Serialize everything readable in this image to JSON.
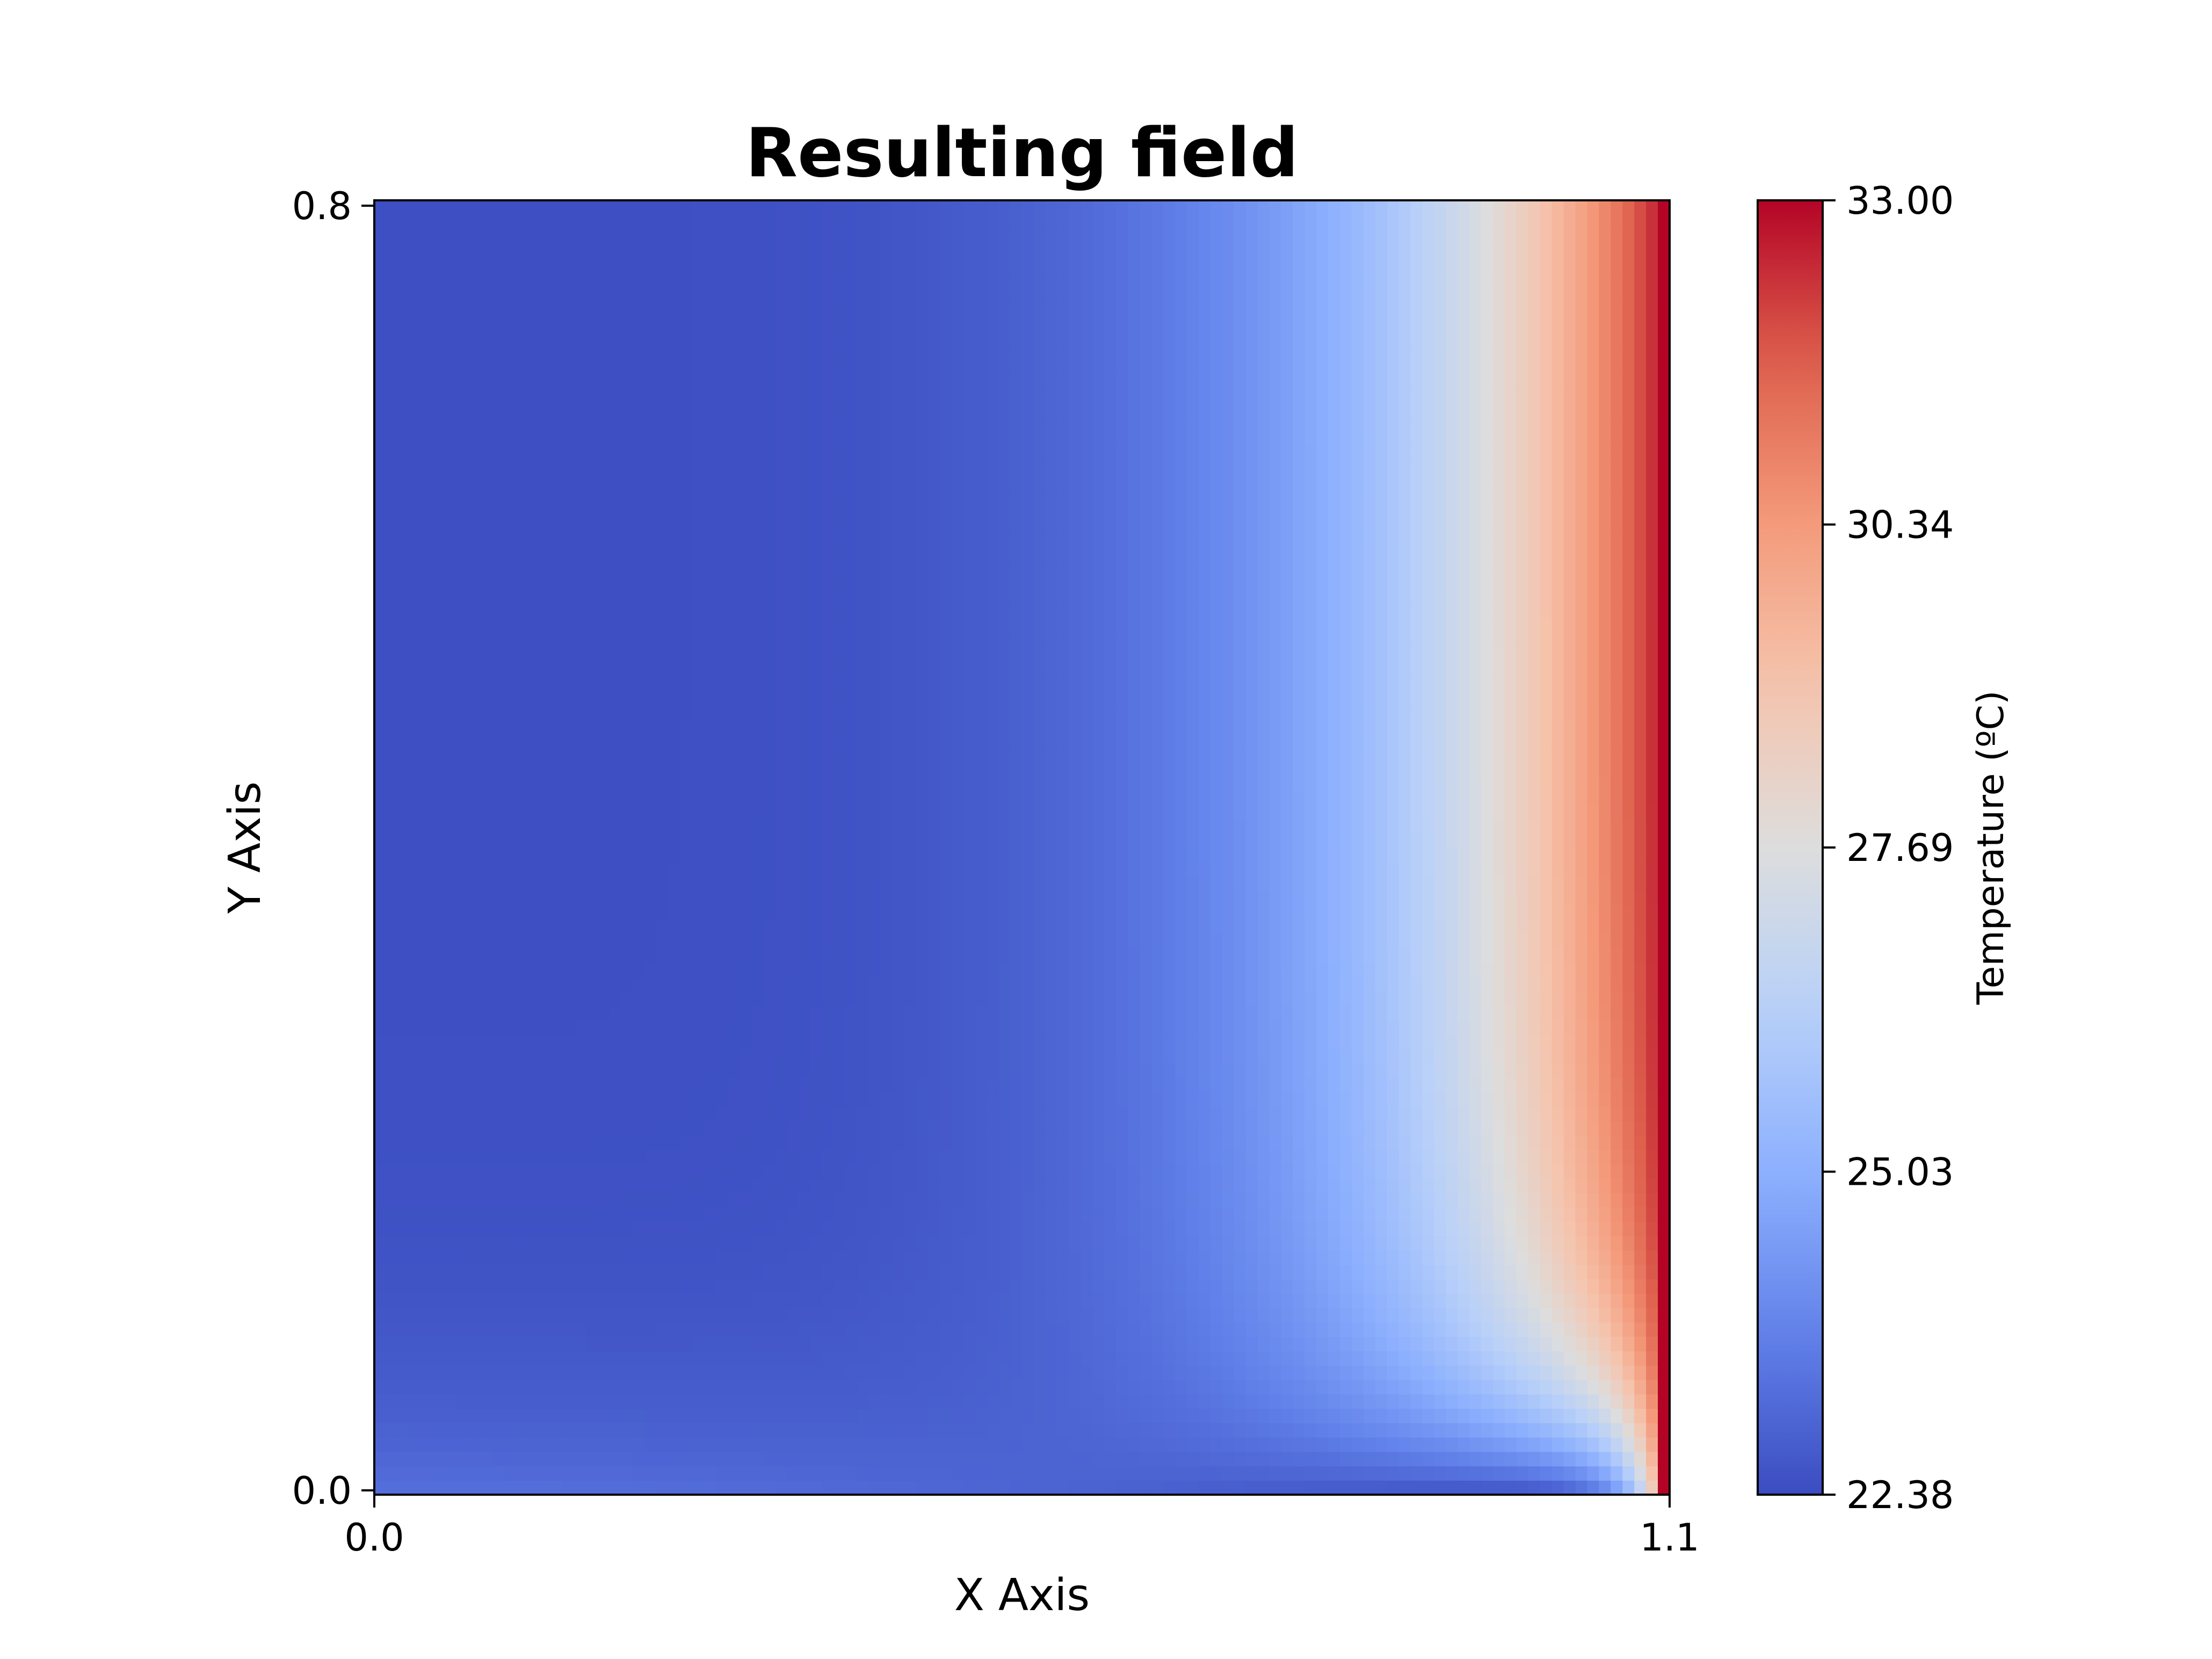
{
  "chart_data": {
    "type": "heatmap",
    "title": "Resulting field",
    "xlabel": "X Axis",
    "ylabel": "Y Axis",
    "xlim": [
      0.0,
      1.1
    ],
    "ylim": [
      0.0,
      0.8
    ],
    "x_ticks": [
      {
        "value": 0.0,
        "label": "0.0"
      },
      {
        "value": 1.1,
        "label": "1.1"
      }
    ],
    "y_ticks": [
      {
        "value": 0.0,
        "label": "0.0"
      },
      {
        "value": 0.8,
        "label": "0.8"
      }
    ],
    "colormap": "coolwarm",
    "colorbar": {
      "label": "Temperature (ºC)",
      "range": [
        22.38,
        33.0
      ],
      "ticks": [
        {
          "value": 22.38,
          "label": "22.38"
        },
        {
          "value": 25.03,
          "label": "25.03"
        },
        {
          "value": 27.69,
          "label": "27.69"
        },
        {
          "value": 30.34,
          "label": "30.34"
        },
        {
          "value": 33.0,
          "label": "33.00"
        }
      ]
    },
    "grid": false,
    "field_description_samples": {
      "columns_x": [
        0.0,
        0.2,
        0.4,
        0.6,
        0.8,
        0.9,
        1.0,
        1.1
      ],
      "top_row_values": [
        22.6,
        22.5,
        23.0,
        24.2,
        26.3,
        27.8,
        30.0,
        33.0
      ],
      "bottom_row_values": [
        23.1,
        23.3,
        23.4,
        23.2,
        22.9,
        22.7,
        22.6,
        33.0
      ]
    }
  }
}
